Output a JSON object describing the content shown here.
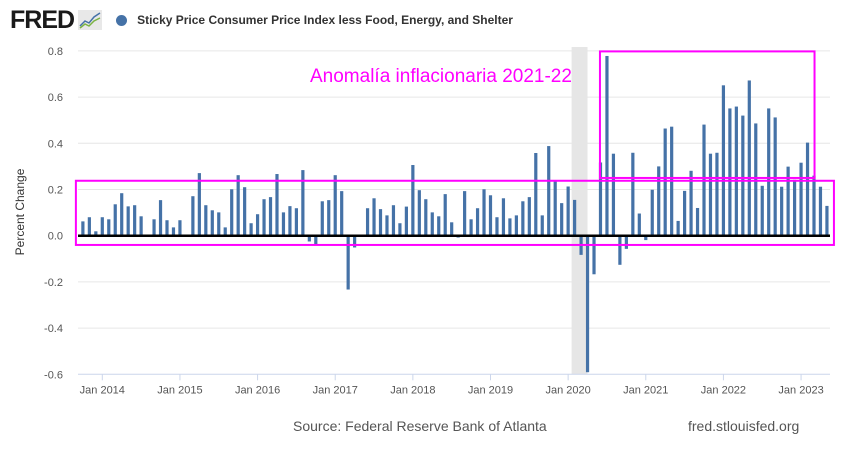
{
  "header": {
    "logo_text": "FRED",
    "logo_icon": "line-chart-icon",
    "legend_label": "Sticky Price Consumer Price Index less Food, Energy, and Shelter"
  },
  "colors": {
    "series": "#4572a7",
    "annotation": "#ff00ff",
    "recession": "#e6e6e6",
    "zero_line": "#000000"
  },
  "chart_data": {
    "type": "bar",
    "title": "Sticky Price Consumer Price Index less Food, Energy, and Shelter",
    "xlabel": "",
    "ylabel": "Percent Change",
    "ylim": [
      -0.6,
      0.8
    ],
    "yticks": [
      "0.8",
      "0.6",
      "0.4",
      "0.2",
      "0.0",
      "-0.2",
      "-0.4",
      "-0.6"
    ],
    "ytick_values": [
      0.8,
      0.6,
      0.4,
      0.2,
      0.0,
      -0.2,
      -0.4,
      -0.6
    ],
    "xticks": [
      "Jan 2014",
      "Jan 2015",
      "Jan 2016",
      "Jan 2017",
      "Jan 2018",
      "Jan 2019",
      "Jan 2020",
      "Jan 2021",
      "Jan 2022",
      "Jan 2023"
    ],
    "grid": true,
    "start": "2013-10",
    "frequency": "monthly",
    "values": [
      0.062,
      0.08,
      0.019,
      0.08,
      0.071,
      0.136,
      0.184,
      0.127,
      0.132,
      0.084,
      -0.005,
      0.071,
      0.154,
      0.067,
      0.036,
      0.067,
      0.0,
      0.171,
      0.271,
      0.132,
      0.11,
      0.101,
      0.036,
      0.201,
      0.262,
      0.21,
      0.054,
      0.093,
      0.158,
      0.167,
      0.267,
      0.101,
      0.128,
      0.119,
      0.284,
      -0.025,
      -0.038,
      0.149,
      0.154,
      0.262,
      0.193,
      -0.233,
      -0.051,
      0.0,
      0.119,
      0.162,
      0.115,
      0.088,
      0.132,
      0.054,
      0.126,
      0.306,
      0.197,
      0.158,
      0.101,
      0.084,
      0.18,
      0.058,
      -0.008,
      0.193,
      0.071,
      0.119,
      0.201,
      0.175,
      0.08,
      0.162,
      0.075,
      0.088,
      0.149,
      0.167,
      0.358,
      0.088,
      0.388,
      0.24,
      0.141,
      0.213,
      0.155,
      -0.083,
      -0.591,
      -0.167,
      0.317,
      0.778,
      0.355,
      -0.126,
      -0.057,
      0.359,
      0.096,
      -0.019,
      0.199,
      0.3,
      0.464,
      0.472,
      0.064,
      0.194,
      0.281,
      0.12,
      0.481,
      0.355,
      0.359,
      0.651,
      0.551,
      0.559,
      0.52,
      0.672,
      0.486,
      0.216,
      0.551,
      0.512,
      0.212,
      0.299,
      0.242,
      0.316,
      0.403,
      0.26,
      0.212,
      0.129
    ],
    "recession": {
      "start": "2020-02",
      "end": "2020-04"
    },
    "annotations": [
      {
        "text": "Anomalía inflacionaria 2021-22",
        "box_x_range": [
          "2020-07",
          "2023-02"
        ],
        "box_y_range": [
          0.25,
          0.8
        ]
      },
      {
        "text": "",
        "box_x_range": [
          "2013-10",
          "2023-05"
        ],
        "box_y_range": [
          -0.04,
          0.24
        ]
      }
    ]
  },
  "footer": {
    "source": "Source: Federal Reserve Bank of Atlanta",
    "url": "fred.stlouisfed.org"
  }
}
